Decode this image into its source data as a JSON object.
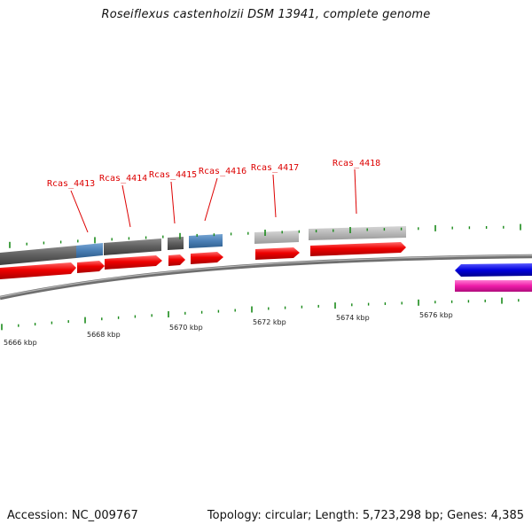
{
  "title": "Roseiflexus castenholzii DSM 13941, complete genome",
  "accession": "Accession: NC_009767",
  "summary": "Topology: circular; Length: 5,723,298 bp; Genes: 4,385",
  "colors": {
    "cds": "#ee0000",
    "gene_dark": "#606060",
    "gene_light": "#b4b4b4",
    "gene_blue": "#4a7fb5",
    "backbone": "#808080",
    "tick": "#1a8a1a",
    "label": "#dd0000",
    "forward_blue": "#0000dd",
    "forward_magenta": "#ee1ba8"
  },
  "gene_labels": [
    "Rcas_4413",
    "Rcas_4414",
    "Rcas_4415",
    "Rcas_4416",
    "Rcas_4417",
    "Rcas_4418"
  ],
  "kbp_labels": [
    "5666 kbp",
    "5668 kbp",
    "5670 kbp",
    "5672 kbp",
    "5674 kbp",
    "5676 kbp"
  ]
}
